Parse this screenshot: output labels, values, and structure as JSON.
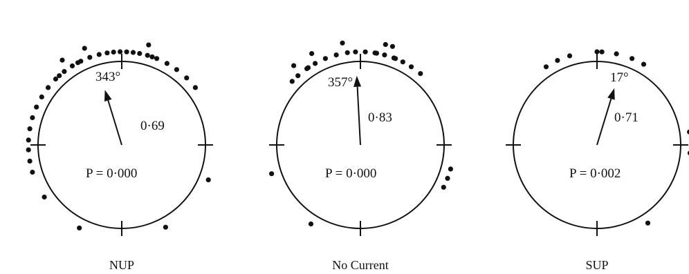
{
  "figure": {
    "panels": [
      {
        "label": "NUP",
        "mean_angle_label": "343°",
        "mean_angle_deg": 343,
        "r_label": "0·69",
        "r_value": 0.69,
        "p_label": "P = 0·000",
        "observations_deg": [
          -107,
          -100,
          -93,
          -87,
          -80,
          -73,
          -66,
          -59,
          -52,
          -45,
          -38,
          -32,
          -26,
          -20,
          -14,
          -9,
          -5,
          -1,
          3,
          7,
          11,
          16,
          22,
          29,
          36,
          44,
          52,
          -42,
          -35,
          -28,
          -21,
          112,
          152,
          -153,
          -124,
          15,
          19
        ]
      },
      {
        "label": "No Current",
        "mean_angle_label": "357°",
        "mean_angle_deg": 357,
        "r_label": "0·83",
        "r_value": 0.83,
        "p_label": "P = 0·000",
        "observations_deg": [
          -42,
          -35,
          -29,
          -22,
          -15,
          -8,
          -47,
          -40,
          -34,
          -28,
          -10,
          -3,
          3,
          9,
          15,
          21,
          27,
          33,
          40,
          10,
          14,
          18,
          22,
          105,
          111,
          117,
          -108,
          -148
        ]
      },
      {
        "label": "SUP",
        "mean_angle_label": "17°",
        "mean_angle_deg": 17,
        "r_label": "0·71",
        "r_value": 0.71,
        "p_label": "P = 0·002",
        "observations_deg": [
          -33,
          -25,
          -17,
          0,
          12,
          22,
          30,
          3,
          82,
          95,
          147
        ]
      }
    ]
  }
}
